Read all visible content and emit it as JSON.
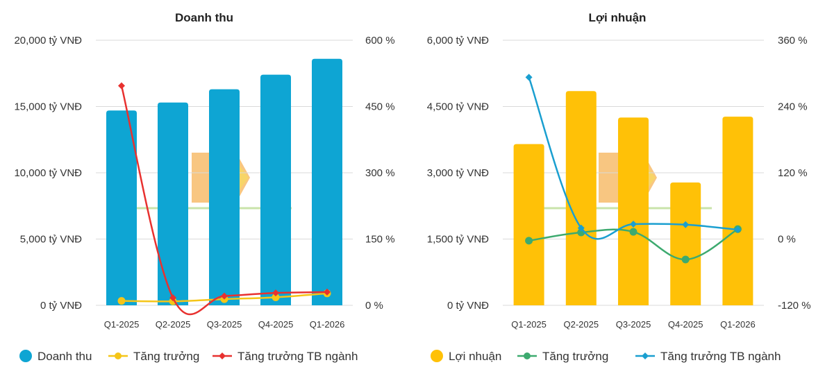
{
  "chart_data": [
    {
      "type": "bar",
      "title": "Doanh thu",
      "categories": [
        "Q1-2025",
        "Q2-2025",
        "Q3-2025",
        "Q4-2025",
        "Q1-2026"
      ],
      "y_left": {
        "range": [
          0,
          20000
        ],
        "ticks": [
          0,
          5000,
          10000,
          15000,
          20000
        ],
        "tick_labels": [
          "0 tỷ VNĐ",
          "5,000 tỷ VNĐ",
          "10,000 tỷ VNĐ",
          "15,000 tỷ VNĐ",
          "20,000 tỷ VNĐ"
        ]
      },
      "y_right": {
        "range": [
          0,
          600
        ],
        "ticks": [
          0,
          150,
          300,
          450,
          600
        ],
        "tick_labels": [
          "0 %",
          "150 %",
          "300 %",
          "450 %",
          "600 %"
        ]
      },
      "grid": true,
      "legend_position": "bottom",
      "series": [
        {
          "name": "Doanh thu",
          "kind": "bar",
          "axis": "left",
          "color": "#0ea5d3",
          "values": [
            14700,
            15300,
            16300,
            17400,
            18600
          ]
        },
        {
          "name": "Tăng trưởng",
          "kind": "line",
          "axis": "right",
          "color": "#f5c518",
          "marker": "circle",
          "values": [
            10,
            9,
            14,
            18,
            27
          ]
        },
        {
          "name": "Tăng trưởng TB ngành",
          "kind": "line",
          "axis": "right",
          "color": "#e8312f",
          "marker": "diamond",
          "values": [
            497,
            17,
            21,
            28,
            30
          ]
        }
      ]
    },
    {
      "type": "bar",
      "title": "Lợi nhuận",
      "categories": [
        "Q1-2025",
        "Q2-2025",
        "Q3-2025",
        "Q4-2025",
        "Q1-2026"
      ],
      "y_left": {
        "range": [
          0,
          6000
        ],
        "ticks": [
          0,
          1500,
          3000,
          4500,
          6000
        ],
        "tick_labels": [
          "0 tỷ VNĐ",
          "1,500 tỷ VNĐ",
          "3,000 tỷ VNĐ",
          "4,500 tỷ VNĐ",
          "6,000 tỷ VNĐ"
        ]
      },
      "y_right": {
        "range": [
          -120,
          360
        ],
        "ticks": [
          -120,
          0,
          120,
          240,
          360
        ],
        "tick_labels": [
          "-120 %",
          "0 %",
          "120 %",
          "240 %",
          "360 %"
        ]
      },
      "grid": true,
      "legend_position": "bottom",
      "series": [
        {
          "name": "Lợi nhuận",
          "kind": "bar",
          "axis": "left",
          "color": "#ffc107",
          "values": [
            3650,
            4850,
            4250,
            2780,
            4270
          ]
        },
        {
          "name": "Tăng trưởng",
          "kind": "line",
          "axis": "right",
          "color": "#3daa6f",
          "marker": "circle",
          "values": [
            -3,
            12,
            13,
            -37,
            18
          ]
        },
        {
          "name": "Tăng trưởng TB ngành",
          "kind": "line",
          "axis": "right",
          "color": "#1a9fd0",
          "marker": "diamond",
          "values": [
            293,
            20,
            27,
            26,
            17
          ]
        }
      ]
    }
  ]
}
